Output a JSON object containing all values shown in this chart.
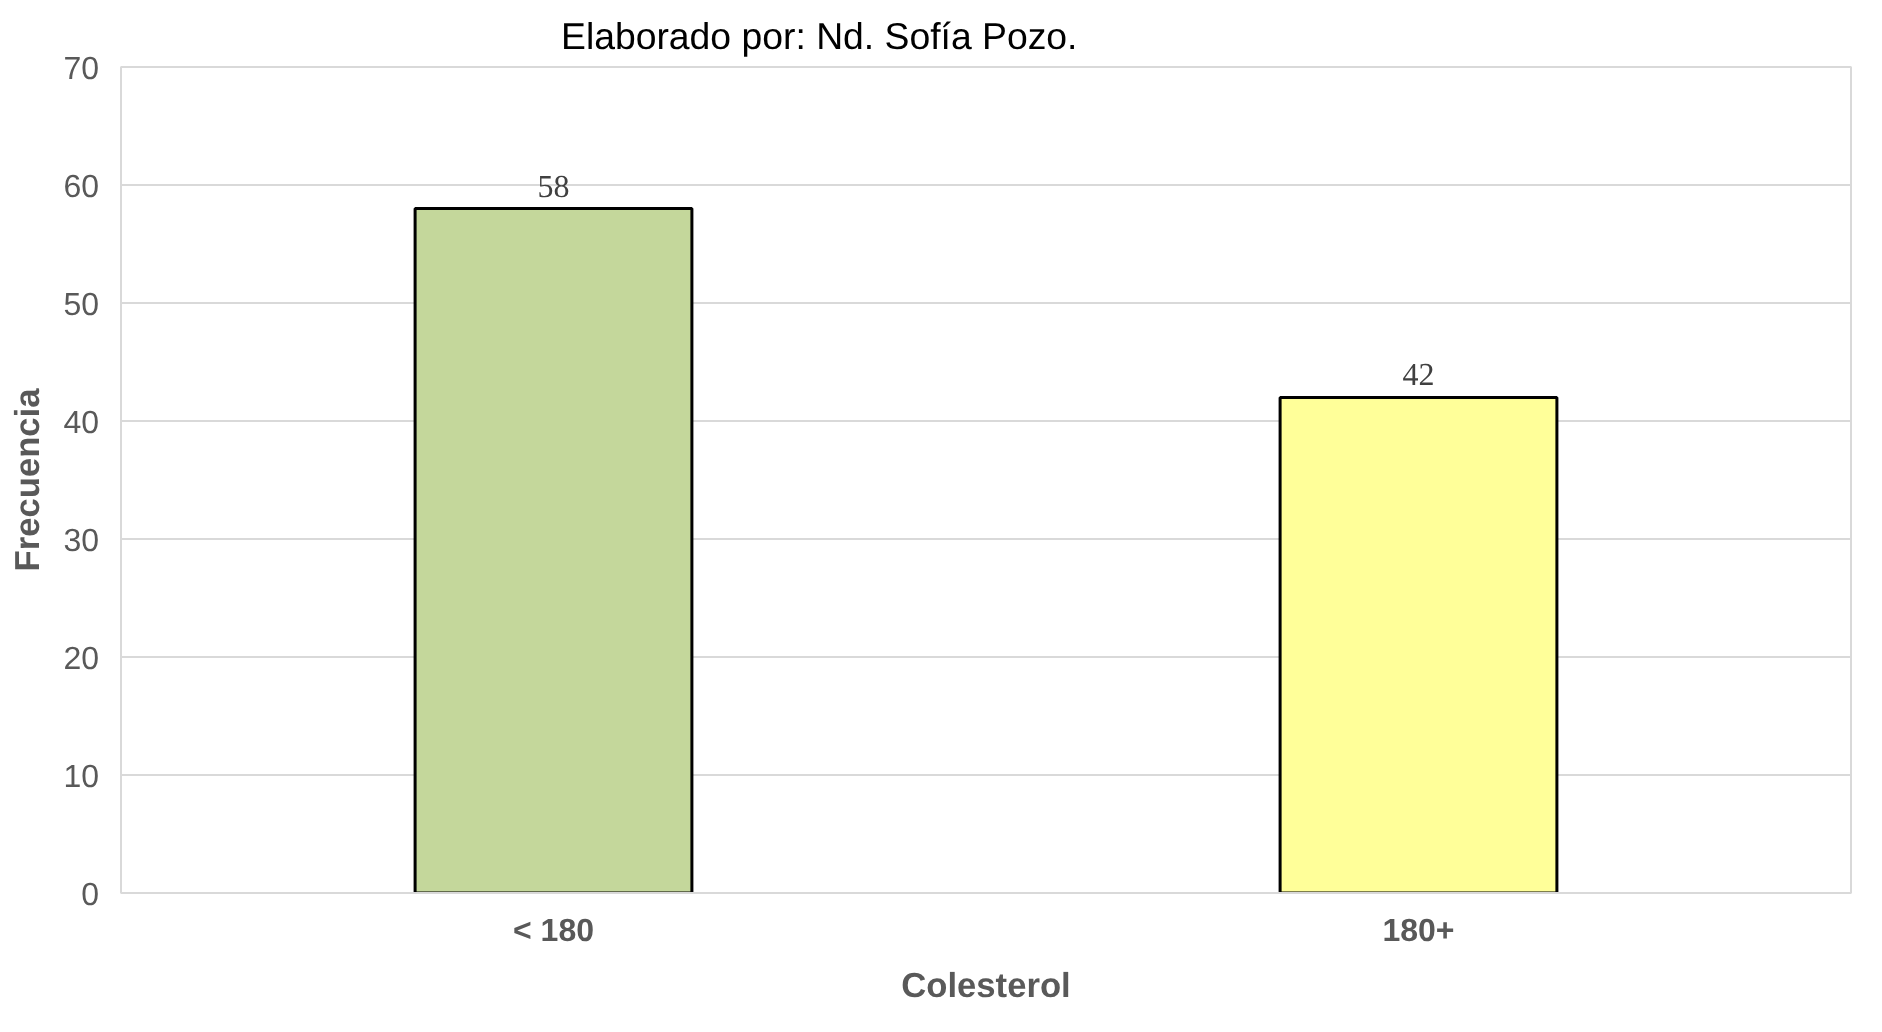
{
  "chart_data": {
    "type": "bar",
    "xlabel": "Colesterol",
    "ylabel": "Frecuencia",
    "annotations": [
      "Elaborado por: Nd. Sofía Pozo."
    ],
    "categories": [
      "< 180",
      "180+"
    ],
    "values": [
      58,
      42
    ],
    "colors": [
      "#c4d79b",
      "#ffff99"
    ],
    "ylim": [
      0,
      70
    ],
    "yticks": [
      0,
      10,
      20,
      30,
      40,
      50,
      60,
      70
    ],
    "grid": "y",
    "data_labels": true
  }
}
